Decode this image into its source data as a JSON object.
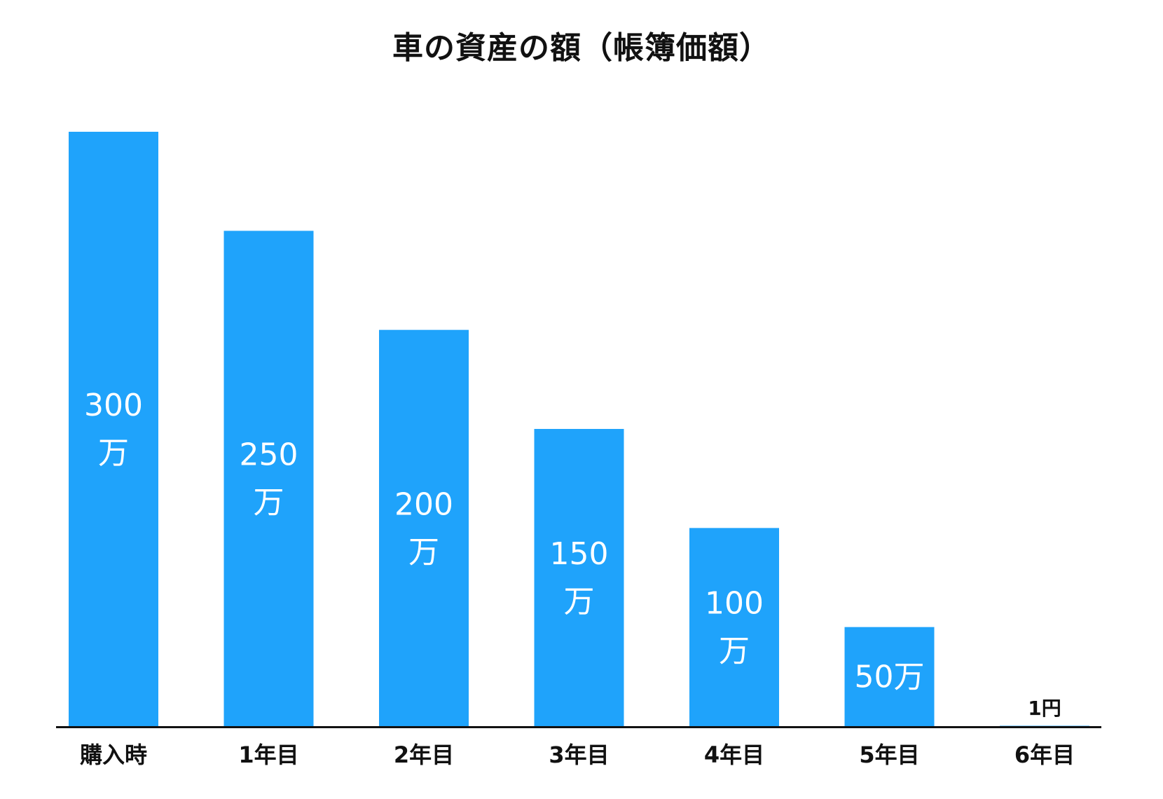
{
  "chart_data": {
    "type": "bar",
    "title": "車の資産の額（帳簿価額）",
    "categories": [
      "購入時",
      "1年目",
      "2年目",
      "3年目",
      "4年目",
      "5年目",
      "6年目"
    ],
    "values": [
      3000000,
      2500000,
      2000000,
      1500000,
      1000000,
      500000,
      1
    ],
    "data_labels": [
      "300万",
      "250万",
      "200万",
      "150万",
      "100万",
      "50万",
      "1円"
    ],
    "xlabel": "",
    "ylabel": "",
    "ylim": [
      0,
      3000000
    ],
    "grid": false,
    "bar_color": "#1fa3fb",
    "label_color_inside": "#ffffff",
    "label_color_outside": "#111111",
    "axis_color": "#111111"
  }
}
